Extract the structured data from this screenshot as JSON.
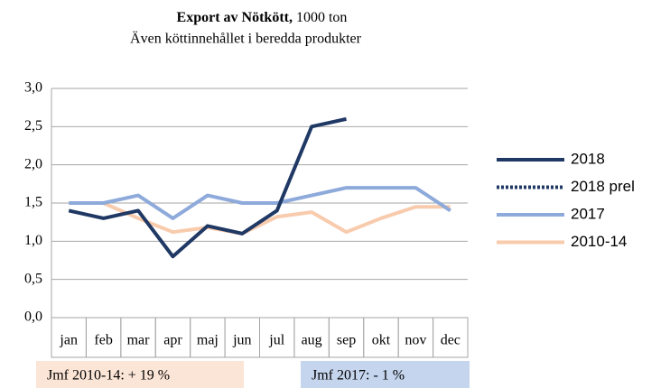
{
  "chart_data": {
    "type": "line",
    "title": "Export av Nötkött,",
    "unit": "1000 ton",
    "subtitle": "Även köttinnehållet i beredda produkter",
    "categories": [
      "jan",
      "feb",
      "mar",
      "apr",
      "maj",
      "jun",
      "jul",
      "aug",
      "sep",
      "okt",
      "nov",
      "dec"
    ],
    "series": [
      {
        "name": "2018",
        "color": "#1f3864",
        "dash": "solid",
        "values": [
          1.4,
          1.3,
          1.4,
          0.8,
          1.2,
          1.1,
          1.4,
          2.5,
          2.6,
          null,
          null,
          null
        ]
      },
      {
        "name": "2018 prel",
        "color": "#1f3864",
        "dash": "dotted",
        "values": [
          null,
          null,
          null,
          null,
          null,
          null,
          null,
          null,
          null,
          null,
          null,
          null
        ]
      },
      {
        "name": "2017",
        "color": "#8eaadb",
        "dash": "solid",
        "values": [
          1.5,
          1.5,
          1.6,
          1.3,
          1.6,
          1.5,
          1.5,
          1.6,
          1.7,
          1.7,
          1.7,
          1.4
        ]
      },
      {
        "name": "2010-14",
        "color": "#f8cbad",
        "dash": "solid",
        "values": [
          1.5,
          1.5,
          1.3,
          1.12,
          1.18,
          1.1,
          1.32,
          1.38,
          1.12,
          1.3,
          1.45,
          1.45
        ]
      }
    ],
    "ylim": [
      0,
      3
    ],
    "yticks": [
      {
        "value": 0,
        "label": "0,0"
      },
      {
        "value": 0.5,
        "label": "0,5"
      },
      {
        "value": 1,
        "label": "1,0"
      },
      {
        "value": 1.5,
        "label": "1,5"
      },
      {
        "value": 2,
        "label": "2,0"
      },
      {
        "value": 2.5,
        "label": "2,5"
      },
      {
        "value": 3,
        "label": "3,0"
      }
    ],
    "grid": true,
    "legend": "right",
    "annotations": [
      "Jmf 2010-14: + 19 %",
      "Jmf 2017: - 1 %"
    ]
  }
}
